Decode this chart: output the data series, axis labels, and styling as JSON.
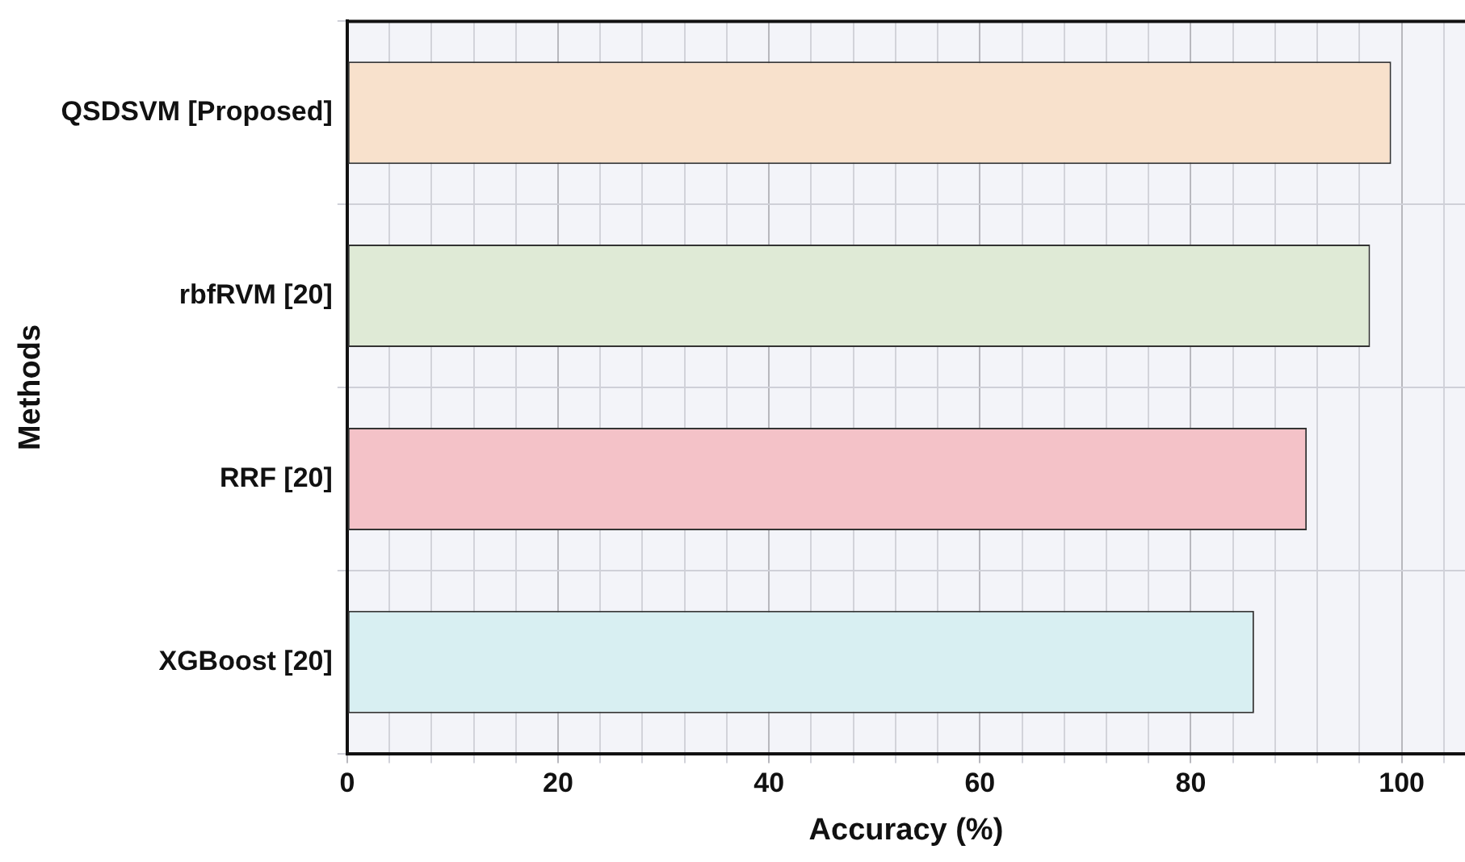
{
  "chart_data": {
    "type": "bar",
    "orientation": "horizontal",
    "xlabel": "Accuracy (%)",
    "ylabel": "Methods",
    "categories": [
      "QSDSVM [Proposed]",
      "rbfRVM [20]",
      "RRF [20]",
      "XGBoost [20]"
    ],
    "values": [
      99,
      97,
      91,
      86
    ],
    "colors": [
      "#f8e1cc",
      "#dfead6",
      "#f4c2c8",
      "#d8eff2"
    ],
    "xlim": [
      0,
      106
    ],
    "xticks": [
      0,
      {
        "value": 4,
        "label": null
      },
      {
        "value": 8,
        "label": null
      },
      {
        "value": 12,
        "label": null
      },
      {
        "value": 16,
        "label": null
      },
      20,
      {
        "value": 24,
        "label": null
      },
      {
        "value": 28,
        "label": null
      },
      {
        "value": 32,
        "label": null
      },
      {
        "value": 36,
        "label": null
      },
      40,
      {
        "value": 44,
        "label": null
      },
      {
        "value": 48,
        "label": null
      },
      {
        "value": 52,
        "label": null
      },
      {
        "value": 56,
        "label": null
      },
      60,
      {
        "value": 64,
        "label": null
      },
      {
        "value": 68,
        "label": null
      },
      {
        "value": 72,
        "label": null
      },
      {
        "value": 76,
        "label": null
      },
      80,
      {
        "value": 84,
        "label": null
      },
      {
        "value": 88,
        "label": null
      },
      {
        "value": 92,
        "label": null
      },
      {
        "value": 96,
        "label": null
      },
      100,
      {
        "value": 104,
        "label": null
      }
    ],
    "grid": true
  }
}
